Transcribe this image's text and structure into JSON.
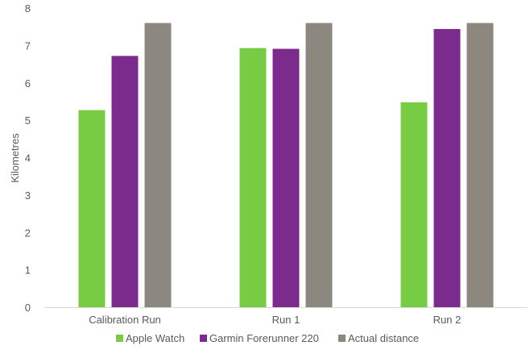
{
  "chart_data": {
    "type": "bar",
    "title": "",
    "xlabel": "",
    "ylabel": "Kilometres",
    "ylim": [
      0,
      8
    ],
    "yticks": [
      0,
      1,
      2,
      3,
      4,
      5,
      6,
      7,
      8
    ],
    "grid": false,
    "legend_position": "bottom",
    "categories": [
      "Calibration Run",
      "Run 1",
      "Run 2"
    ],
    "series": [
      {
        "name": "Apple Watch",
        "color": "#77cc44",
        "values": [
          5.27,
          6.93,
          5.48
        ]
      },
      {
        "name": "Garmin Forerunner 220",
        "color": "#7b2b8c",
        "values": [
          6.72,
          6.91,
          7.44
        ]
      },
      {
        "name": "Actual distance",
        "color": "#8c8880",
        "values": [
          7.6,
          7.6,
          7.6
        ]
      }
    ]
  }
}
